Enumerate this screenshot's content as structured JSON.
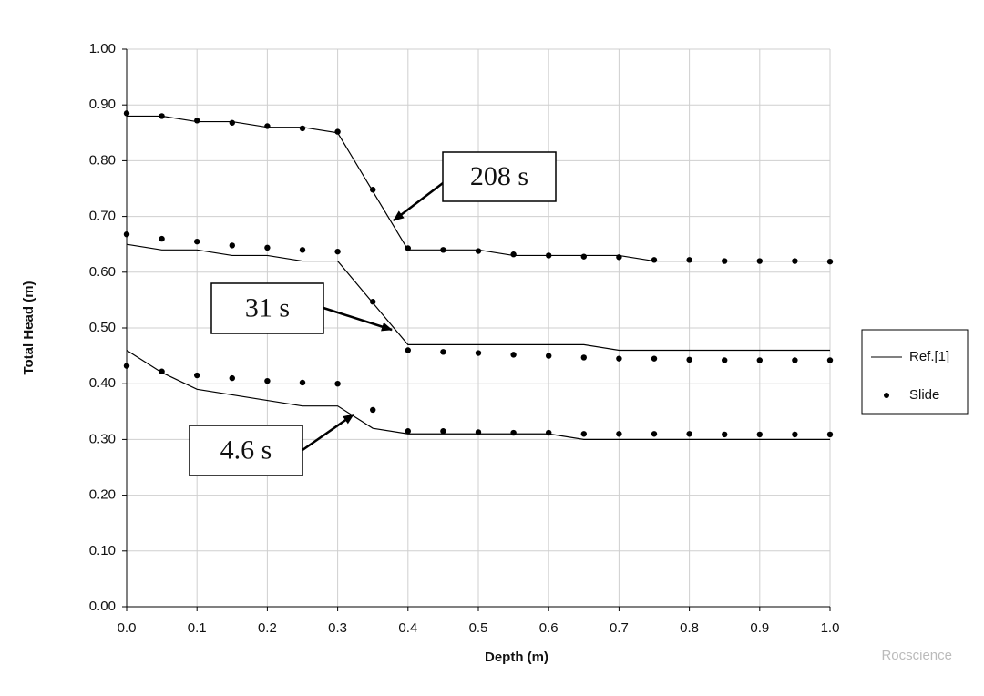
{
  "chart_data": {
    "type": "line",
    "xlabel": "Depth (m)",
    "ylabel": "Total Head (m)",
    "x": [
      0,
      0.05,
      0.1,
      0.15,
      0.2,
      0.25,
      0.3,
      0.35,
      0.4,
      0.45,
      0.5,
      0.55,
      0.6,
      0.65,
      0.7,
      0.75,
      0.8,
      0.85,
      0.9,
      0.95,
      1.0
    ],
    "series": [
      {
        "name": "Ref.[1]",
        "style": "line",
        "color": "#000000",
        "values": [
          0.88,
          0.88,
          0.87,
          0.87,
          0.86,
          0.86,
          0.85,
          0.745,
          0.64,
          0.64,
          0.64,
          0.63,
          0.63,
          0.63,
          0.63,
          0.62,
          0.62,
          0.62,
          0.62,
          0.62,
          0.62
        ]
      },
      {
        "name": "Slide",
        "style": "dots",
        "color": "#000000",
        "values": [
          0.885,
          0.88,
          0.872,
          0.868,
          0.862,
          0.858,
          0.852,
          0.748,
          0.643,
          0.64,
          0.638,
          0.632,
          0.63,
          0.628,
          0.627,
          0.622,
          0.622,
          0.62,
          0.62,
          0.62,
          0.619
        ]
      },
      {
        "name": "Ref.[1]",
        "style": "line",
        "color": "#000000",
        "values": [
          0.65,
          0.64,
          0.64,
          0.63,
          0.63,
          0.62,
          0.62,
          0.545,
          0.47,
          0.47,
          0.47,
          0.47,
          0.47,
          0.47,
          0.46,
          0.46,
          0.46,
          0.46,
          0.46,
          0.46,
          0.46
        ]
      },
      {
        "name": "Slide",
        "style": "dots",
        "color": "#000000",
        "values": [
          0.668,
          0.66,
          0.655,
          0.648,
          0.644,
          0.64,
          0.637,
          0.547,
          0.46,
          0.457,
          0.455,
          0.452,
          0.45,
          0.447,
          0.445,
          0.445,
          0.443,
          0.442,
          0.442,
          0.442,
          0.442
        ]
      },
      {
        "name": "Ref.[1]",
        "style": "line",
        "color": "#000000",
        "values": [
          0.46,
          0.42,
          0.39,
          0.38,
          0.37,
          0.36,
          0.36,
          0.32,
          0.31,
          0.31,
          0.31,
          0.31,
          0.31,
          0.3,
          0.3,
          0.3,
          0.3,
          0.3,
          0.3,
          0.3,
          0.3
        ]
      },
      {
        "name": "Slide",
        "style": "dots",
        "color": "#000000",
        "values": [
          0.432,
          0.422,
          0.415,
          0.41,
          0.405,
          0.402,
          0.4,
          0.353,
          0.315,
          0.315,
          0.313,
          0.312,
          0.312,
          0.31,
          0.31,
          0.31,
          0.31,
          0.309,
          0.309,
          0.309,
          0.309
        ]
      }
    ],
    "xlim": [
      0,
      1.0
    ],
    "xticks": [
      {
        "value": 0,
        "label": "0.0"
      },
      0.1,
      0.2,
      0.3,
      0.4,
      0.5,
      0.6,
      0.7,
      0.8,
      0.9,
      {
        "value": 1.0,
        "label": "1.0"
      }
    ],
    "ylim": [
      0,
      1.0
    ],
    "yticks": [
      {
        "value": 0,
        "label": "0.00"
      },
      {
        "value": 0.1,
        "label": "0.10"
      },
      {
        "value": 0.2,
        "label": "0.20"
      },
      {
        "value": 0.3,
        "label": "0.30"
      },
      {
        "value": 0.4,
        "label": "0.40"
      },
      {
        "value": 0.5,
        "label": "0.50"
      },
      {
        "value": 0.6,
        "label": "0.60"
      },
      {
        "value": 0.7,
        "label": "0.70"
      },
      {
        "value": 0.8,
        "label": "0.80"
      },
      {
        "value": 0.9,
        "label": "0.90"
      },
      {
        "value": 1.0,
        "label": "1.00"
      }
    ],
    "grid": true,
    "legend": "right",
    "annotations": [
      {
        "text": "208 s"
      },
      {
        "text": "31 s"
      },
      {
        "text": "4.6 s"
      }
    ],
    "watermark": "Rocscience"
  }
}
